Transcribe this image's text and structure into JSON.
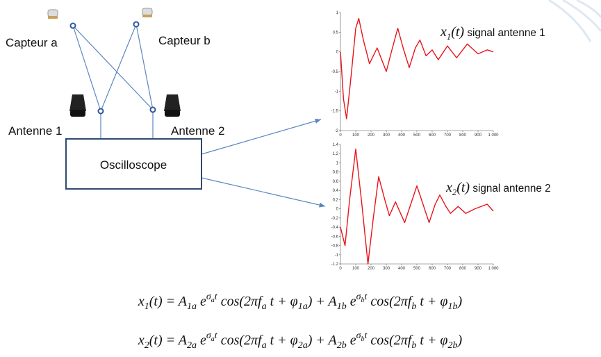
{
  "sensors": [
    "Capteur a",
    "Capteur b"
  ],
  "antennas": [
    "Antenne 1",
    "Antenne 2"
  ],
  "device": "Oscilloscope",
  "plots": [
    {
      "label": [
        {
          "text": "x"
        },
        {
          "sub": "1"
        },
        {
          "text": "(t)"
        },
        {
          "plain": " signal antenne 1"
        }
      ],
      "xlim": [
        0,
        1000
      ],
      "ylim": [
        -2,
        1
      ],
      "xticks": [
        0,
        100,
        200,
        300,
        400,
        500,
        600,
        700,
        800,
        900,
        {
          "value": 1000,
          "label": "1 000"
        }
      ],
      "yticks": [
        -2,
        -1.5,
        -1,
        -0.5,
        0,
        0.5,
        1
      ],
      "color": "#e8141b",
      "x": [
        0,
        20,
        40,
        70,
        100,
        120,
        150,
        190,
        240,
        300,
        340,
        375,
        410,
        450,
        490,
        520,
        560,
        600,
        640,
        700,
        760,
        830,
        900,
        960,
        1000
      ],
      "values": [
        0,
        -1.2,
        -1.7,
        -0.6,
        0.6,
        0.85,
        0.3,
        -0.3,
        0.1,
        -0.5,
        0.1,
        0.6,
        0.1,
        -0.4,
        0.1,
        0.3,
        -0.1,
        0.05,
        -0.2,
        0.15,
        -0.15,
        0.2,
        -0.05,
        0.05,
        0
      ]
    },
    {
      "label": [
        {
          "text": "x"
        },
        {
          "sub": "2"
        },
        {
          "text": "(t)"
        },
        {
          "plain": " signal antenne 2"
        }
      ],
      "xlim": [
        0,
        1000
      ],
      "ylim": [
        -1.2,
        1.4
      ],
      "xticks": [
        0,
        100,
        200,
        300,
        400,
        500,
        600,
        700,
        800,
        900,
        {
          "value": 1000,
          "label": "1 000"
        }
      ],
      "yticks": [
        -1.2,
        -1,
        -0.8,
        -0.6,
        -0.4,
        -0.2,
        0,
        0.2,
        0.4,
        0.6,
        0.8,
        1,
        1.2,
        1.4
      ],
      "color": "#e8141b",
      "x": [
        0,
        30,
        60,
        100,
        140,
        180,
        215,
        250,
        290,
        320,
        360,
        420,
        460,
        500,
        540,
        580,
        620,
        650,
        690,
        720,
        770,
        820,
        880,
        960,
        1000
      ],
      "values": [
        -0.4,
        -0.8,
        0.2,
        1.3,
        0.1,
        -1.2,
        -0.2,
        0.7,
        0.2,
        -0.15,
        0.15,
        -0.3,
        0.1,
        0.5,
        0.1,
        -0.3,
        0.1,
        0.3,
        0.05,
        -0.1,
        0.05,
        -0.1,
        0,
        0.1,
        -0.05
      ]
    }
  ],
  "formulas": [
    [
      {
        "text": "x"
      },
      {
        "sub": "1"
      },
      {
        "text": "(t) = A"
      },
      {
        "sub": "1a"
      },
      {
        "text": " e"
      },
      {
        "sup": "σ"
      },
      {
        "supsub": "a"
      },
      {
        "sup": "t"
      },
      {
        "text": " cos(2πf"
      },
      {
        "sub": "a"
      },
      {
        "text": " t + φ"
      },
      {
        "sub": "1a"
      },
      {
        "text": ") + A"
      },
      {
        "sub": "1b"
      },
      {
        "text": " e"
      },
      {
        "sup": "σ"
      },
      {
        "supsub": "b"
      },
      {
        "sup": "t"
      },
      {
        "text": " cos(2πf"
      },
      {
        "sub": "b"
      },
      {
        "text": " t + φ"
      },
      {
        "sub": "1b"
      },
      {
        "text": ")"
      }
    ],
    [
      {
        "text": "x"
      },
      {
        "sub": "2"
      },
      {
        "text": "(t) = A"
      },
      {
        "sub": "2a"
      },
      {
        "text": " e"
      },
      {
        "sup": "σ"
      },
      {
        "supsub": "a"
      },
      {
        "sup": "t"
      },
      {
        "text": " cos(2πf"
      },
      {
        "sub": "a"
      },
      {
        "text": " t + φ"
      },
      {
        "sub": "2a"
      },
      {
        "text": ") + A"
      },
      {
        "sub": "2b"
      },
      {
        "text": " e"
      },
      {
        "sup": "σ"
      },
      {
        "supsub": "b"
      },
      {
        "sup": "t"
      },
      {
        "text": " cos(2πf"
      },
      {
        "sub": "b"
      },
      {
        "text": " t + φ"
      },
      {
        "sub": "2b"
      },
      {
        "text": ")"
      }
    ]
  ]
}
